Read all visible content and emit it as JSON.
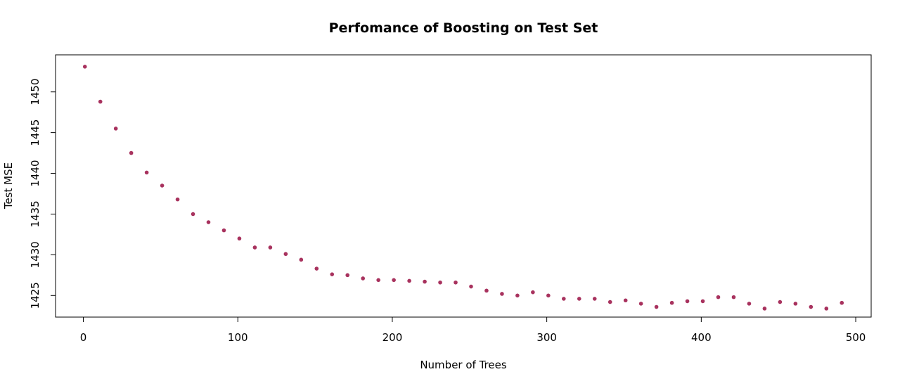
{
  "chart_data": {
    "type": "scatter",
    "title": "Perfomance of Boosting on Test Set",
    "xlabel": "Number of Trees",
    "ylabel": "Test MSE",
    "xlim": [
      -18,
      510
    ],
    "ylim": [
      1422.35,
      1454.55
    ],
    "xticks": [
      0,
      100,
      200,
      300,
      400,
      500
    ],
    "yticks": [
      1425,
      1430,
      1435,
      1440,
      1445,
      1450
    ],
    "grid": false,
    "point_color": "#a8325e",
    "x": [
      1,
      11,
      21,
      31,
      41,
      51,
      61,
      71,
      81,
      91,
      101,
      111,
      121,
      131,
      141,
      151,
      161,
      171,
      181,
      191,
      201,
      211,
      221,
      231,
      241,
      251,
      261,
      271,
      281,
      291,
      301,
      311,
      321,
      331,
      341,
      351,
      361,
      371,
      381,
      391,
      401,
      411,
      421,
      431,
      441,
      451,
      461,
      471,
      481,
      491
    ],
    "y": [
      1453.1,
      1448.8,
      1445.5,
      1442.5,
      1440.1,
      1438.5,
      1436.8,
      1435.0,
      1434.0,
      1433.0,
      1432.0,
      1430.9,
      1430.9,
      1430.1,
      1429.4,
      1428.3,
      1427.6,
      1427.5,
      1427.1,
      1426.9,
      1426.9,
      1426.8,
      1426.7,
      1426.6,
      1426.6,
      1426.1,
      1425.6,
      1425.2,
      1425.0,
      1425.4,
      1425.0,
      1424.6,
      1424.6,
      1424.6,
      1424.2,
      1424.4,
      1424.0,
      1423.6,
      1424.1,
      1424.3,
      1424.3,
      1424.8,
      1424.8,
      1424.0,
      1423.4,
      1424.2,
      1424.0,
      1423.6,
      1423.4,
      1424.1
    ]
  }
}
